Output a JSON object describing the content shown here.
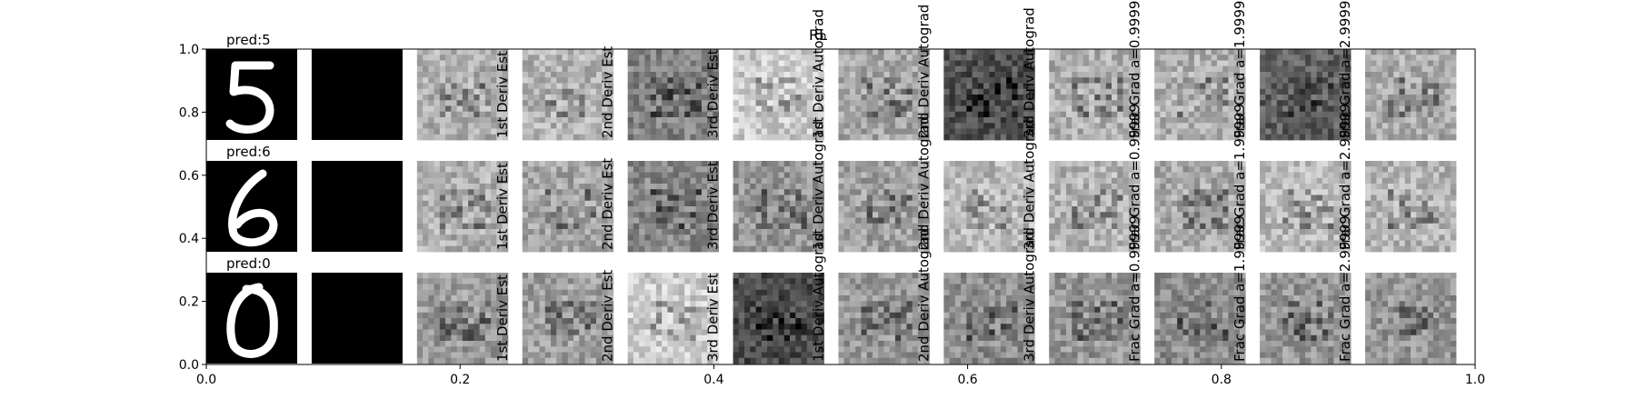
{
  "figure": {
    "title": "RL"
  },
  "chart_data": {
    "type": "heatmap",
    "title": "RL",
    "x_axis": {
      "range": [
        0.0,
        1.0
      ],
      "ticks": [
        "0.0",
        "0.2",
        "0.4",
        "0.6",
        "0.8",
        "1.0"
      ]
    },
    "y_axis": {
      "range": [
        0.0,
        1.0
      ],
      "ticks": [
        "0.0",
        "0.2",
        "0.4",
        "0.6",
        "0.8",
        "1.0"
      ]
    },
    "grid": false,
    "columns": [
      {
        "label": ""
      },
      {
        "label": ""
      },
      {
        "label": "1st Deriv Est"
      },
      {
        "label": "2nd Deriv Est"
      },
      {
        "label": "3rd Deriv Est"
      },
      {
        "label": "1st Deriv Autograd"
      },
      {
        "label": "2nd Deriv Autograd"
      },
      {
        "label": "3rd Deriv Autograd"
      },
      {
        "label": "Frac Grad a=0.99999"
      },
      {
        "label": "Frac Grad a=1.99999"
      },
      {
        "label": "Frac Grad a=2.99999"
      },
      {
        "label": ""
      }
    ],
    "rows": [
      {
        "pred_label": "pred:5",
        "digit": "5",
        "base_gray": [
          220,
          30,
          175,
          180,
          130,
          205,
          165,
          80,
          175,
          175,
          95,
          170
        ]
      },
      {
        "pred_label": "pred:6",
        "digit": "6",
        "base_gray": [
          200,
          20,
          175,
          165,
          135,
          150,
          160,
          185,
          180,
          170,
          185,
          180
        ]
      },
      {
        "pred_label": "pred:0",
        "digit": "0",
        "base_gray": [
          190,
          20,
          155,
          160,
          205,
          75,
          150,
          140,
          150,
          140,
          150,
          150
        ]
      }
    ]
  }
}
